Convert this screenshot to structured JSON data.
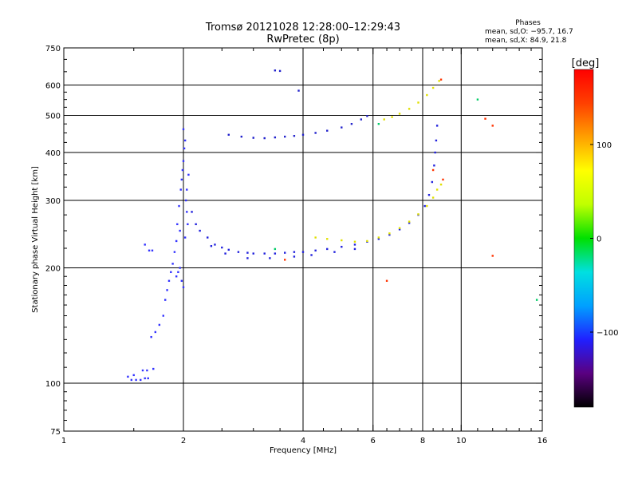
{
  "chart_data": {
    "type": "scatter",
    "title": "Tromsø 20121028 12:28:00–12:29:43",
    "subtitle": "RwPretec (8p)",
    "xlabel": "Frequency [MHz]",
    "ylabel": "Stationary phase Virtual Height [km]",
    "xscale": "log",
    "yscale": "log",
    "xlim": [
      1,
      16
    ],
    "ylim": [
      75,
      750
    ],
    "xticks": [
      1,
      2,
      4,
      6,
      8,
      10,
      16
    ],
    "xticklabels": [
      "1",
      "2",
      "4",
      "6",
      "8",
      "10",
      "16"
    ],
    "xgrid": [
      2,
      4,
      6,
      8,
      10
    ],
    "yticks": [
      75,
      100,
      200,
      300,
      400,
      500,
      600,
      750
    ],
    "yticklabels": [
      "75",
      "100",
      "200",
      "300",
      "400",
      "500",
      "600",
      "750"
    ],
    "ygrid": [
      100,
      200,
      300,
      400,
      500,
      600
    ],
    "grid": true,
    "phases": {
      "title": "Phases",
      "line_o": "mean, sd,O: −95.7, 16.7",
      "line_x": "mean, sd,X:  84.9, 21.8"
    },
    "colorbar": {
      "label": "[deg]",
      "range": [
        -180,
        180
      ],
      "ticks": [
        100,
        0,
        -100
      ],
      "ticklabels": [
        "100",
        "0",
        "−100"
      ],
      "colormap": [
        "#000000",
        "#5a0080",
        "#2020ff",
        "#00a0ff",
        "#00e0e0",
        "#00e000",
        "#c0ff00",
        "#ffff00",
        "#ffa000",
        "#ff4000",
        "#ff0000"
      ]
    },
    "series": [
      {
        "color": "#3333ff",
        "points": [
          [
            1.45,
            104
          ],
          [
            1.48,
            102
          ],
          [
            1.52,
            102
          ],
          [
            1.56,
            102
          ],
          [
            1.6,
            103
          ],
          [
            1.63,
            103
          ],
          [
            1.5,
            105
          ],
          [
            1.58,
            108
          ],
          [
            1.62,
            108
          ],
          [
            1.68,
            109
          ],
          [
            1.66,
            132
          ],
          [
            1.7,
            136
          ],
          [
            1.74,
            142
          ],
          [
            1.78,
            150
          ],
          [
            1.8,
            165
          ],
          [
            1.82,
            175
          ],
          [
            1.84,
            185
          ],
          [
            1.86,
            195
          ],
          [
            1.88,
            205
          ],
          [
            1.9,
            220
          ],
          [
            1.92,
            235
          ],
          [
            1.93,
            260
          ],
          [
            1.95,
            290
          ],
          [
            1.97,
            320
          ],
          [
            1.98,
            340
          ],
          [
            1.99,
            360
          ],
          [
            2.0,
            380
          ],
          [
            2.01,
            410
          ],
          [
            2.02,
            430
          ],
          [
            2.0,
            460
          ],
          [
            2.03,
            300
          ],
          [
            2.04,
            280
          ],
          [
            2.05,
            260
          ],
          [
            1.96,
            200
          ],
          [
            1.98,
            185
          ],
          [
            2.0,
            178
          ],
          [
            1.94,
            195
          ],
          [
            1.92,
            190
          ],
          [
            1.96,
            250
          ],
          [
            2.02,
            240
          ],
          [
            2.04,
            320
          ],
          [
            2.06,
            350
          ],
          [
            1.6,
            230
          ],
          [
            1.64,
            222
          ],
          [
            1.67,
            222
          ]
        ]
      },
      {
        "color": "#2222dd",
        "points": [
          [
            2.1,
            280
          ],
          [
            2.15,
            260
          ],
          [
            2.2,
            250
          ],
          [
            2.3,
            240
          ],
          [
            2.4,
            230
          ],
          [
            2.5,
            226
          ],
          [
            2.6,
            223
          ],
          [
            2.75,
            220
          ],
          [
            2.9,
            219
          ],
          [
            3.0,
            218
          ],
          [
            3.2,
            218
          ],
          [
            3.4,
            218
          ],
          [
            3.6,
            219
          ],
          [
            3.8,
            220
          ],
          [
            4.0,
            220
          ],
          [
            4.3,
            222
          ],
          [
            4.6,
            224
          ],
          [
            5.0,
            227
          ],
          [
            5.4,
            230
          ],
          [
            5.8,
            234
          ],
          [
            6.2,
            238
          ],
          [
            6.6,
            244
          ],
          [
            7.0,
            252
          ],
          [
            7.4,
            262
          ],
          [
            7.8,
            275
          ],
          [
            8.1,
            290
          ],
          [
            8.3,
            310
          ],
          [
            8.45,
            335
          ],
          [
            8.55,
            370
          ],
          [
            8.6,
            400
          ],
          [
            8.65,
            430
          ],
          [
            8.7,
            470
          ],
          [
            2.35,
            228
          ],
          [
            2.55,
            218
          ],
          [
            2.9,
            212
          ],
          [
            3.3,
            212
          ],
          [
            3.8,
            214
          ],
          [
            4.2,
            216
          ],
          [
            4.8,
            220
          ],
          [
            5.4,
            224
          ]
        ]
      },
      {
        "color": "#2222cc",
        "points": [
          [
            2.6,
            445
          ],
          [
            2.8,
            440
          ],
          [
            3.0,
            437
          ],
          [
            3.2,
            436
          ],
          [
            3.4,
            438
          ],
          [
            3.6,
            440
          ],
          [
            3.8,
            442
          ],
          [
            4.0,
            445
          ],
          [
            4.3,
            450
          ],
          [
            4.6,
            456
          ],
          [
            5.0,
            465
          ],
          [
            5.3,
            475
          ],
          [
            5.6,
            488
          ],
          [
            5.8,
            498
          ],
          [
            3.4,
            655
          ],
          [
            3.5,
            653
          ],
          [
            3.9,
            580
          ]
        ]
      },
      {
        "color": "#e0e000",
        "points": [
          [
            4.3,
            240
          ],
          [
            4.6,
            238
          ],
          [
            5.0,
            236
          ],
          [
            5.4,
            234
          ],
          [
            5.8,
            235
          ],
          [
            6.2,
            240
          ],
          [
            6.6,
            246
          ],
          [
            7.0,
            254
          ],
          [
            7.4,
            264
          ],
          [
            7.8,
            276
          ],
          [
            8.2,
            290
          ],
          [
            8.5,
            305
          ],
          [
            8.7,
            320
          ],
          [
            8.9,
            330
          ],
          [
            6.4,
            488
          ],
          [
            6.7,
            495
          ],
          [
            7.0,
            505
          ],
          [
            7.4,
            520
          ],
          [
            7.8,
            540
          ],
          [
            8.2,
            565
          ],
          [
            8.5,
            590
          ],
          [
            8.8,
            615
          ]
        ]
      },
      {
        "color": "#ff3300",
        "points": [
          [
            8.9,
            620
          ],
          [
            11.5,
            490
          ],
          [
            12.0,
            470
          ],
          [
            12.0,
            215
          ],
          [
            3.6,
            210
          ],
          [
            6.5,
            185
          ],
          [
            8.5,
            360
          ],
          [
            9.0,
            340
          ]
        ]
      },
      {
        "color": "#00cc66",
        "points": [
          [
            15.5,
            165
          ],
          [
            6.2,
            475
          ],
          [
            3.4,
            224
          ],
          [
            11.0,
            550
          ]
        ]
      }
    ]
  }
}
